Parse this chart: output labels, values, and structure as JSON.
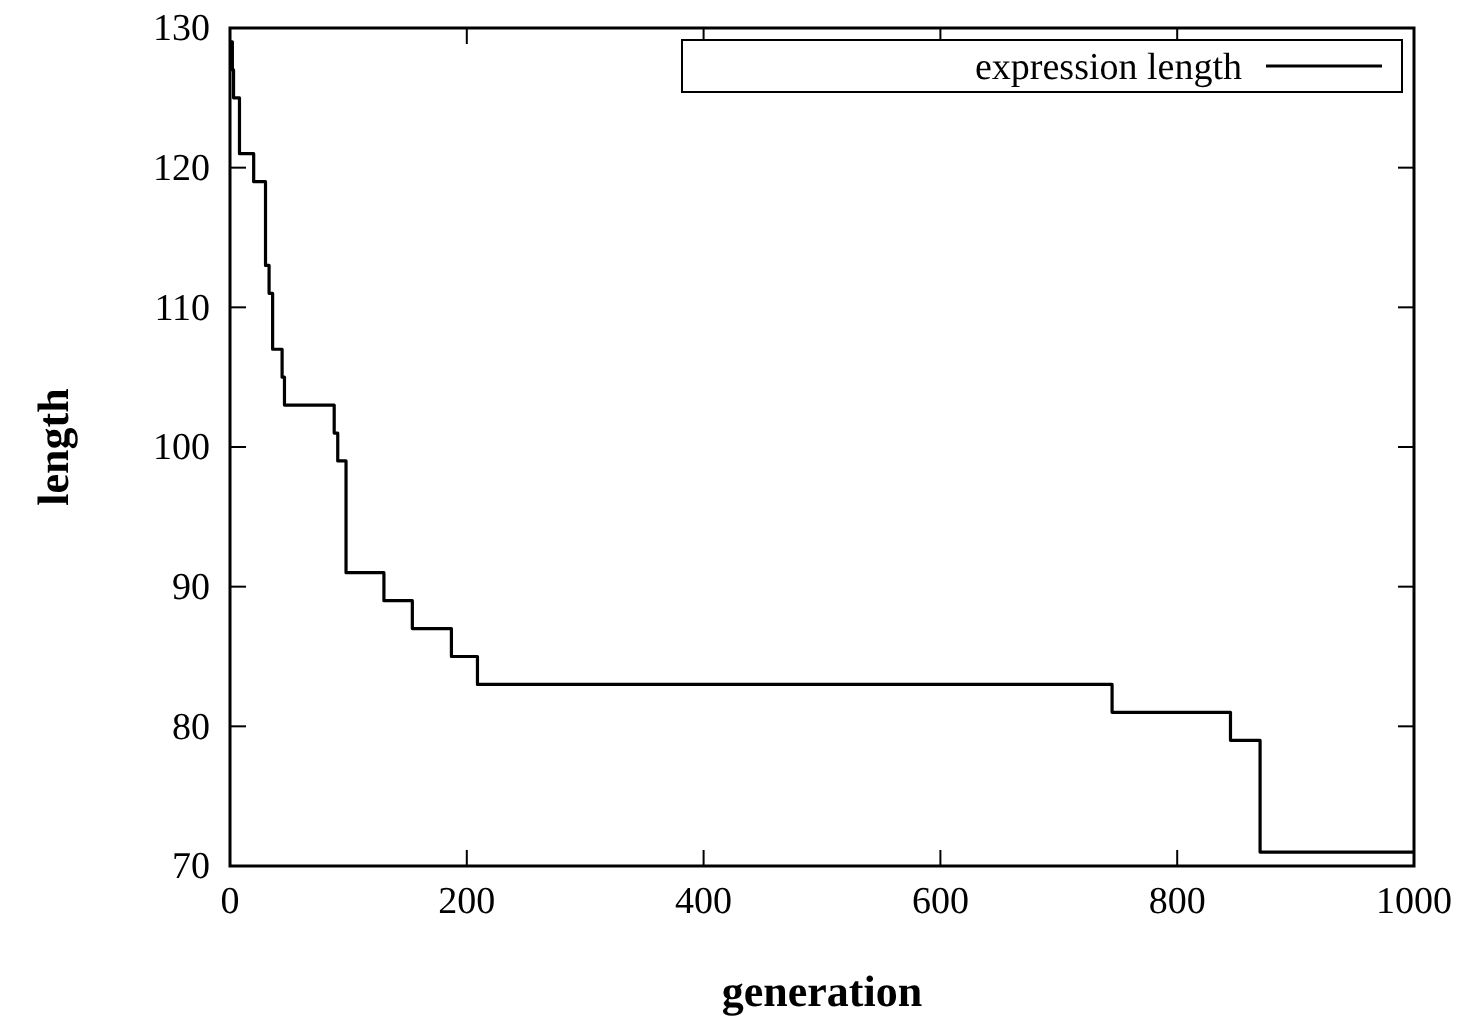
{
  "chart_data": {
    "type": "step",
    "xlabel": "generation",
    "ylabel": "length",
    "xlim": [
      0,
      1000
    ],
    "ylim": [
      70,
      130
    ],
    "xticks": [
      0,
      200,
      400,
      600,
      800,
      1000
    ],
    "yticks": [
      70,
      80,
      90,
      100,
      110,
      120,
      130
    ],
    "grid": false,
    "legend": "top right",
    "marker": "none",
    "line_style": "solid",
    "series": [
      {
        "name": "expression length",
        "color": "#000000",
        "x": [
          0,
          2,
          3,
          8,
          20,
          30,
          33,
          36,
          44,
          46,
          55,
          88,
          91,
          95,
          98,
          130,
          154,
          187,
          209,
          745,
          845,
          870,
          1000
        ],
        "values": [
          129,
          127,
          125,
          121,
          119,
          113,
          111,
          107,
          105,
          103,
          103,
          101,
          99,
          99,
          91,
          89,
          87,
          85,
          83,
          81,
          79,
          71,
          71
        ]
      }
    ]
  }
}
